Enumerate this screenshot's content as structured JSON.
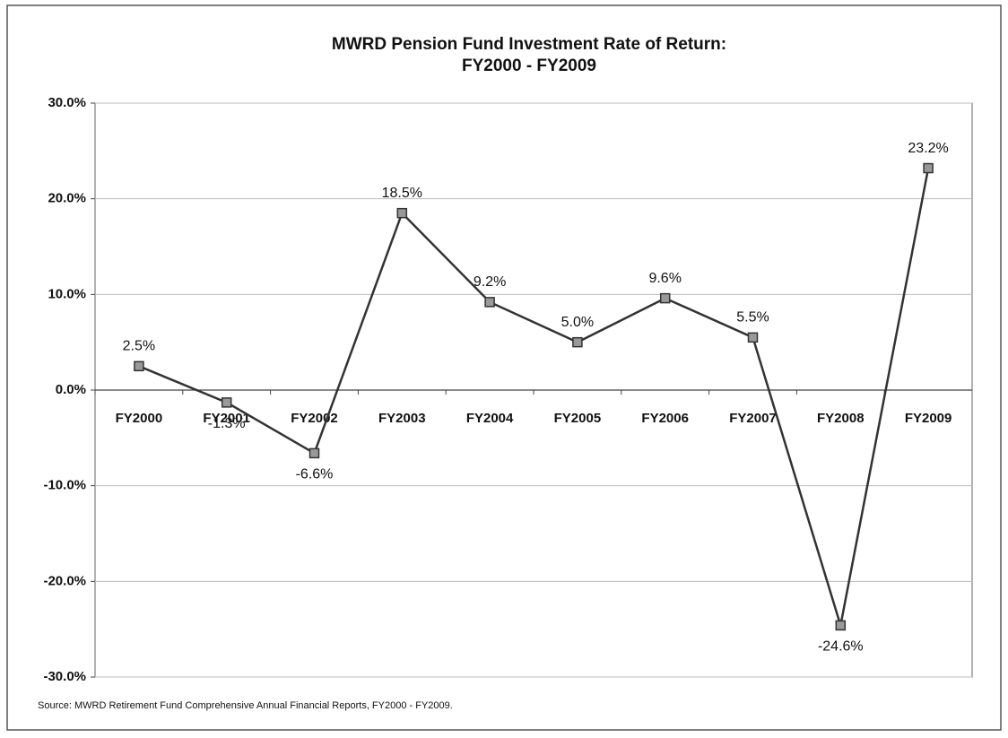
{
  "chart_data": {
    "type": "line",
    "title": [
      "MWRD Pension Fund Investment Rate of Return:",
      "FY2000 - FY2009"
    ],
    "categories": [
      "FY2000",
      "FY2001",
      "FY2002",
      "FY2003",
      "FY2004",
      "FY2005",
      "FY2006",
      "FY2007",
      "FY2008",
      "FY2009"
    ],
    "values": [
      2.5,
      -1.3,
      -6.6,
      18.5,
      9.2,
      5.0,
      9.6,
      5.5,
      -24.6,
      23.2
    ],
    "value_labels": [
      "2.5%",
      "-1.3%",
      "-6.6%",
      "18.5%",
      "9.2%",
      "5.0%",
      "9.6%",
      "5.5%",
      "-24.6%",
      "23.2%"
    ],
    "color": "#333333",
    "ylim": [
      -30,
      30
    ],
    "yticks": [
      {
        "value": -30,
        "label": "-30.0%"
      },
      {
        "value": -20,
        "label": "-20.0%"
      },
      {
        "value": -10,
        "label": "-10.0%"
      },
      {
        "value": 0,
        "label": "0.0%"
      },
      {
        "value": 10,
        "label": "10.0%"
      },
      {
        "value": 20,
        "label": "20.0%"
      },
      {
        "value": 30,
        "label": "30.0%"
      }
    ],
    "grid": true,
    "source": "Source: MWRD Retirement Fund Comprehensive Annual Financial Reports, FY2000 - FY2009."
  }
}
